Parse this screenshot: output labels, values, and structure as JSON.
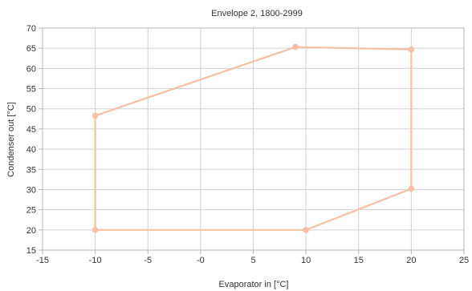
{
  "chart_data": {
    "type": "line",
    "title": "Envelope 2, 1800-2999",
    "xlabel": "Evaporator in  [°C]",
    "ylabel": "Condenser out  [°C]",
    "xlim": [
      -15,
      25
    ],
    "ylim": [
      15,
      70
    ],
    "xticks": [
      "-15",
      "-10",
      "-5",
      "-0",
      "5",
      "10",
      "15",
      "20",
      "25"
    ],
    "yticks": [
      "15",
      "20",
      "25",
      "30",
      "35",
      "40",
      "45",
      "50",
      "55",
      "60",
      "65",
      "70"
    ],
    "grid": true,
    "series": [
      {
        "closed": true,
        "color": "#f5c0a4",
        "points": [
          {
            "x": -10,
            "y": 20
          },
          {
            "x": -10,
            "y": 48.3
          },
          {
            "x": 9,
            "y": 65.3
          },
          {
            "x": 20,
            "y": 64.7
          },
          {
            "x": 20,
            "y": 30.2
          },
          {
            "x": 10,
            "y": 20
          }
        ]
      }
    ]
  }
}
